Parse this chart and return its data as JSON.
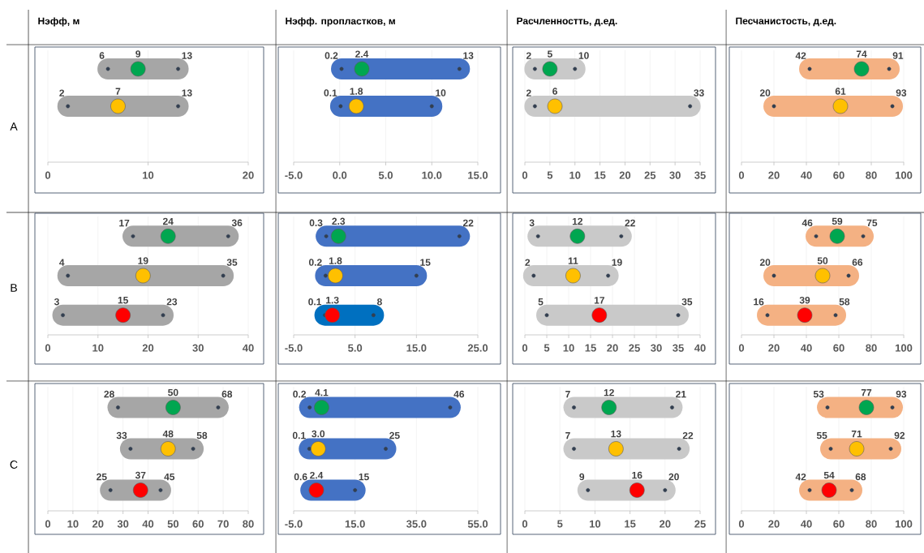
{
  "chart_data": [
    {
      "type": "bar",
      "orientation": "horizontal",
      "title": "Нэфф, м",
      "ylabel": "A",
      "categories": [
        null,
        null,
        null
      ],
      "xlim": [
        0,
        20
      ],
      "xticks": [
        0,
        10,
        20
      ],
      "grid": "x",
      "series": [
        {
          "type": "bar",
          "color": "#a6a6a6",
          "base": [
            6,
            2,
            null
          ],
          "values": [
            7,
            11,
            null
          ]
        },
        {
          "type": "scatter",
          "color": "#333f50",
          "values": [
            6,
            2,
            null
          ],
          "value_labels": [
            "6",
            "2",
            null
          ]
        },
        {
          "type": "scatter",
          "color": "#333f50",
          "values": [
            13,
            13,
            null
          ],
          "value_labels": [
            "13",
            "13",
            null
          ]
        },
        {
          "type": "scatter",
          "colors": [
            "#00a650",
            "#ffc000",
            "#ff0000"
          ],
          "values": [
            9,
            7,
            null
          ],
          "value_labels": [
            "9",
            "7",
            null
          ]
        }
      ]
    },
    {
      "type": "bar",
      "orientation": "horizontal",
      "title": "Нэфф. пропластков, м",
      "categories": [
        null,
        null,
        null
      ],
      "xlim": [
        -5,
        15
      ],
      "xticks": [
        {
          "value": -5,
          "label": "-5.0"
        },
        {
          "value": 0,
          "label": "0.0"
        },
        {
          "value": 5,
          "label": "5.0"
        },
        {
          "value": 10,
          "label": "10.0"
        },
        {
          "value": 15,
          "label": "15.0"
        }
      ],
      "grid": "x",
      "series": [
        {
          "type": "bar",
          "color": "#4472c4",
          "base": [
            0.2,
            0.1,
            null
          ],
          "values": [
            12.8,
            9.9,
            null
          ]
        },
        {
          "type": "scatter",
          "color": "#333f50",
          "values": [
            0.2,
            0.1,
            null
          ],
          "value_labels": [
            "0.2",
            "0.1",
            null
          ]
        },
        {
          "type": "scatter",
          "color": "#333f50",
          "values": [
            13,
            10,
            null
          ],
          "value_labels": [
            "13",
            "10",
            null
          ]
        },
        {
          "type": "scatter",
          "colors": [
            "#00a650",
            "#ffc000",
            "#ff0000"
          ],
          "values": [
            2.4,
            1.8,
            null
          ],
          "value_labels": [
            "2.4",
            "1.8",
            null
          ]
        }
      ]
    },
    {
      "type": "bar",
      "orientation": "horizontal",
      "title": "Расчленностть, д.ед.",
      "categories": [
        null,
        null,
        null
      ],
      "xlim": [
        0,
        35
      ],
      "xticks": [
        0,
        5,
        10,
        15,
        20,
        25,
        30,
        35
      ],
      "grid": "x",
      "series": [
        {
          "type": "bar",
          "color": "#c9c9c9",
          "base": [
            2,
            2,
            null
          ],
          "values": [
            8,
            31,
            null
          ]
        },
        {
          "type": "scatter",
          "color": "#333f50",
          "values": [
            2,
            2,
            null
          ],
          "value_labels": [
            "2",
            "2",
            null
          ]
        },
        {
          "type": "scatter",
          "color": "#333f50",
          "values": [
            10,
            33,
            null
          ],
          "value_labels": [
            "10",
            "33",
            null
          ]
        },
        {
          "type": "scatter",
          "colors": [
            "#00a650",
            "#ffc000",
            "#ff0000"
          ],
          "values": [
            5,
            6,
            null
          ],
          "value_labels": [
            "5",
            "6",
            null
          ]
        }
      ]
    },
    {
      "type": "bar",
      "orientation": "horizontal",
      "title": "Песчанистость, д.ед.",
      "categories": [
        null,
        null,
        null
      ],
      "xlim": [
        0,
        100
      ],
      "xticks": [
        0,
        20,
        40,
        60,
        80,
        100
      ],
      "grid": "x",
      "series": [
        {
          "type": "bar",
          "color": "#f4b183",
          "base": [
            42,
            20,
            null
          ],
          "values": [
            49,
            73,
            null
          ]
        },
        {
          "type": "scatter",
          "color": "#333f50",
          "values": [
            42,
            20,
            null
          ],
          "value_labels": [
            "42",
            "20",
            null
          ]
        },
        {
          "type": "scatter",
          "color": "#333f50",
          "values": [
            91,
            93,
            null
          ],
          "value_labels": [
            "91",
            "93",
            null
          ]
        },
        {
          "type": "scatter",
          "colors": [
            "#00a650",
            "#ffc000",
            "#ff0000"
          ],
          "values": [
            74,
            61,
            null
          ],
          "value_labels": [
            "74",
            "61",
            null
          ]
        }
      ]
    },
    {
      "type": "bar",
      "orientation": "horizontal",
      "ylabel": "B",
      "categories": [
        null,
        null,
        null
      ],
      "xlim": [
        0,
        40
      ],
      "xticks": [
        0,
        10,
        20,
        30,
        40
      ],
      "grid": "x",
      "series": [
        {
          "type": "bar",
          "color": "#a6a6a6",
          "base": [
            17,
            4,
            3
          ],
          "values": [
            19,
            31,
            20
          ]
        },
        {
          "type": "scatter",
          "color": "#333f50",
          "values": [
            17,
            4,
            3
          ],
          "value_labels": [
            "17",
            "4",
            "3"
          ]
        },
        {
          "type": "scatter",
          "color": "#333f50",
          "values": [
            36,
            35,
            23
          ],
          "value_labels": [
            "36",
            "35",
            "23"
          ]
        },
        {
          "type": "scatter",
          "colors": [
            "#00a650",
            "#ffc000",
            "#ff0000"
          ],
          "values": [
            24,
            19,
            15
          ],
          "value_labels": [
            "24",
            "19",
            "15"
          ]
        }
      ]
    },
    {
      "type": "bar",
      "orientation": "horizontal",
      "categories": [
        null,
        null,
        null
      ],
      "xlim": [
        -5,
        25
      ],
      "xticks": [
        {
          "value": -5,
          "label": "-5.0"
        },
        {
          "value": 5,
          "label": "5.0"
        },
        {
          "value": 15,
          "label": "15.0"
        },
        {
          "value": 25,
          "label": "25.0"
        }
      ],
      "grid": "x",
      "series": [
        {
          "type": "bar",
          "colors": [
            "#4472c4",
            "#4472c4",
            "#0070c0"
          ],
          "base": [
            0.3,
            0.2,
            0.1
          ],
          "values": [
            21.7,
            14.8,
            7.9
          ]
        },
        {
          "type": "scatter",
          "color": "#333f50",
          "values": [
            0.3,
            0.2,
            0.1
          ],
          "value_labels": [
            "0.3",
            "0.2",
            "0.1"
          ]
        },
        {
          "type": "scatter",
          "color": "#333f50",
          "values": [
            22,
            15,
            8
          ],
          "value_labels": [
            "22",
            "15",
            "8"
          ]
        },
        {
          "type": "scatter",
          "colors": [
            "#00a650",
            "#ffc000",
            "#ff0000"
          ],
          "values": [
            2.3,
            1.8,
            1.3
          ],
          "value_labels": [
            "2.3",
            "1.8",
            "1.3"
          ]
        }
      ]
    },
    {
      "type": "bar",
      "orientation": "horizontal",
      "categories": [
        null,
        null,
        null
      ],
      "xlim": [
        0,
        40
      ],
      "xticks": [
        0,
        5,
        10,
        15,
        20,
        25,
        30,
        35,
        40
      ],
      "grid": "x",
      "series": [
        {
          "type": "bar",
          "color": "#c9c9c9",
          "base": [
            3,
            2,
            5
          ],
          "values": [
            19,
            17,
            30
          ]
        },
        {
          "type": "scatter",
          "color": "#333f50",
          "values": [
            3,
            2,
            5
          ],
          "value_labels": [
            "3",
            "2",
            "5"
          ]
        },
        {
          "type": "scatter",
          "color": "#333f50",
          "values": [
            22,
            19,
            35
          ],
          "value_labels": [
            "22",
            "19",
            "35"
          ]
        },
        {
          "type": "scatter",
          "colors": [
            "#00a650",
            "#ffc000",
            "#ff0000"
          ],
          "values": [
            12,
            11,
            17
          ],
          "value_labels": [
            "12",
            "11",
            "17"
          ]
        }
      ]
    },
    {
      "type": "bar",
      "orientation": "horizontal",
      "categories": [
        null,
        null,
        null
      ],
      "xlim": [
        0,
        100
      ],
      "xticks": [
        0,
        20,
        40,
        60,
        80,
        100
      ],
      "grid": "x",
      "series": [
        {
          "type": "bar",
          "color": "#f4b183",
          "base": [
            46,
            20,
            16
          ],
          "values": [
            29,
            46,
            42
          ]
        },
        {
          "type": "scatter",
          "color": "#333f50",
          "values": [
            46,
            20,
            16
          ],
          "value_labels": [
            "46",
            "20",
            "16"
          ]
        },
        {
          "type": "scatter",
          "color": "#333f50",
          "values": [
            75,
            66,
            58
          ],
          "value_labels": [
            "75",
            "66",
            "58"
          ]
        },
        {
          "type": "scatter",
          "colors": [
            "#00a650",
            "#ffc000",
            "#ff0000"
          ],
          "values": [
            59,
            50,
            39
          ],
          "value_labels": [
            "59",
            "50",
            "39"
          ]
        }
      ]
    },
    {
      "type": "bar",
      "orientation": "horizontal",
      "ylabel": "C",
      "categories": [
        null,
        null,
        null
      ],
      "xlim": [
        0,
        80
      ],
      "xticks": [
        0,
        10,
        20,
        30,
        40,
        50,
        60,
        70,
        80
      ],
      "grid": "x",
      "series": [
        {
          "type": "bar",
          "color": "#a6a6a6",
          "base": [
            28,
            33,
            25
          ],
          "values": [
            40,
            25,
            20
          ]
        },
        {
          "type": "scatter",
          "color": "#333f50",
          "values": [
            28,
            33,
            25
          ],
          "value_labels": [
            "28",
            "33",
            "25"
          ]
        },
        {
          "type": "scatter",
          "color": "#333f50",
          "values": [
            68,
            58,
            45
          ],
          "value_labels": [
            "68",
            "58",
            "45"
          ]
        },
        {
          "type": "scatter",
          "colors": [
            "#00a650",
            "#ffc000",
            "#ff0000"
          ],
          "values": [
            50,
            48,
            37
          ],
          "value_labels": [
            "50",
            "48",
            "37"
          ]
        }
      ]
    },
    {
      "type": "bar",
      "orientation": "horizontal",
      "categories": [
        null,
        null,
        null
      ],
      "xlim": [
        -5,
        55
      ],
      "xticks": [
        {
          "value": -5,
          "label": "-5.0"
        },
        {
          "value": 15,
          "label": "15.0"
        },
        {
          "value": 35,
          "label": "35.0"
        },
        {
          "value": 55,
          "label": "55.0"
        }
      ],
      "grid": "x",
      "series": [
        {
          "type": "bar",
          "color": "#4472c4",
          "base": [
            0.2,
            0.1,
            0.6
          ],
          "values": [
            45.8,
            24.9,
            14.4
          ]
        },
        {
          "type": "scatter",
          "color": "#333f50",
          "values": [
            0.2,
            0.1,
            0.6
          ],
          "value_labels": [
            "0.2",
            "0.1",
            "0.6"
          ]
        },
        {
          "type": "scatter",
          "color": "#333f50",
          "values": [
            46,
            25,
            15
          ],
          "value_labels": [
            "46",
            "25",
            "15"
          ]
        },
        {
          "type": "scatter",
          "colors": [
            "#00a650",
            "#ffc000",
            "#ff0000"
          ],
          "values": [
            4.1,
            3.0,
            2.4
          ],
          "value_labels": [
            "4.1",
            "3.0",
            "2.4"
          ]
        }
      ]
    },
    {
      "type": "bar",
      "orientation": "horizontal",
      "categories": [
        null,
        null,
        null
      ],
      "xlim": [
        0,
        25
      ],
      "xticks": [
        0,
        5,
        10,
        15,
        20,
        25
      ],
      "grid": "x",
      "series": [
        {
          "type": "bar",
          "color": "#c9c9c9",
          "base": [
            7,
            7,
            9
          ],
          "values": [
            14,
            15,
            11
          ]
        },
        {
          "type": "scatter",
          "color": "#333f50",
          "values": [
            7,
            7,
            9
          ],
          "value_labels": [
            "7",
            "7",
            "9"
          ]
        },
        {
          "type": "scatter",
          "color": "#333f50",
          "values": [
            21,
            22,
            20
          ],
          "value_labels": [
            "21",
            "22",
            "20"
          ]
        },
        {
          "type": "scatter",
          "colors": [
            "#00a650",
            "#ffc000",
            "#ff0000"
          ],
          "values": [
            12,
            13,
            16
          ],
          "value_labels": [
            "12",
            "13",
            "16"
          ]
        }
      ]
    },
    {
      "type": "bar",
      "orientation": "horizontal",
      "categories": [
        null,
        null,
        null
      ],
      "xlim": [
        0,
        100
      ],
      "xticks": [
        0,
        20,
        40,
        60,
        80,
        100
      ],
      "grid": "x",
      "series": [
        {
          "type": "bar",
          "color": "#f4b183",
          "base": [
            53,
            55,
            42
          ],
          "values": [
            40,
            37,
            26
          ]
        },
        {
          "type": "scatter",
          "color": "#333f50",
          "values": [
            53,
            55,
            42
          ],
          "value_labels": [
            "53",
            "55",
            "42"
          ]
        },
        {
          "type": "scatter",
          "color": "#333f50",
          "values": [
            93,
            92,
            68
          ],
          "value_labels": [
            "93",
            "92",
            "68"
          ]
        },
        {
          "type": "scatter",
          "colors": [
            "#00a650",
            "#ffc000",
            "#ff0000"
          ],
          "values": [
            77,
            71,
            54
          ],
          "value_labels": [
            "77",
            "71",
            "54"
          ]
        }
      ]
    }
  ]
}
